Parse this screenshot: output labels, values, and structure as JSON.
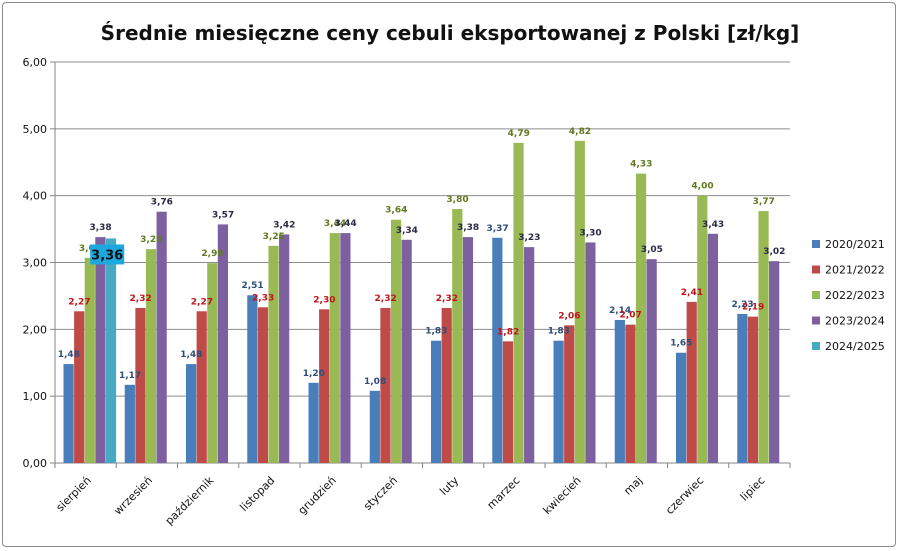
{
  "chart_data": {
    "type": "bar",
    "title": "Średnie miesięczne ceny cebuli eksportowanej z Polski [zł/kg]",
    "xlabel": "",
    "ylabel": "",
    "ylim": [
      0,
      6
    ],
    "yticks": [
      "0,00",
      "1,00",
      "2,00",
      "3,00",
      "4,00",
      "5,00",
      "6,00"
    ],
    "grid": true,
    "legend_position": "right",
    "categories": [
      "sierpień",
      "wrzesień",
      "październik",
      "listopad",
      "grudzień",
      "styczeń",
      "luty",
      "marzec",
      "kwiecień",
      "maj",
      "czerwiec",
      "lipiec"
    ],
    "series": [
      {
        "name": "2020/2021",
        "color": "#4a7ebb",
        "label_color": "#2e4d7a",
        "values": [
          1.48,
          1.17,
          1.48,
          2.51,
          1.2,
          1.08,
          1.83,
          3.37,
          1.83,
          2.14,
          1.65,
          2.23
        ],
        "labels": [
          "1,48",
          "1,17",
          "1,48",
          "2,51",
          "1,20",
          "1,08",
          "1,83",
          "3,37",
          "1,83",
          "2,14",
          "1,65",
          "2,23"
        ]
      },
      {
        "name": "2021/2022",
        "color": "#be4b48",
        "label_color": "#c0141b",
        "values": [
          2.27,
          2.32,
          2.27,
          2.33,
          2.3,
          2.32,
          2.32,
          1.82,
          2.06,
          2.07,
          2.41,
          2.19
        ],
        "labels": [
          "2,27",
          "2,32",
          "2,27",
          "2,33",
          "2,30",
          "2,32",
          "2,32",
          "1,82",
          "2,06",
          "2,07",
          "2,41",
          "2,19"
        ]
      },
      {
        "name": "2022/2023",
        "color": "#98b954",
        "label_color": "#5e7a1e",
        "values": [
          3.07,
          3.2,
          2.99,
          3.25,
          3.44,
          3.64,
          3.8,
          4.79,
          4.82,
          4.33,
          4.0,
          3.77
        ],
        "labels": [
          "3,07",
          "3,20",
          "2,99",
          "3,25",
          "3,44",
          "3,64",
          "3,80",
          "4,79",
          "4,82",
          "4,33",
          "4,00",
          "3,77"
        ]
      },
      {
        "name": "2023/2024",
        "color": "#7d60a0",
        "label_color": "#2a2a44",
        "values": [
          3.38,
          3.76,
          3.57,
          3.42,
          3.44,
          3.34,
          3.38,
          3.23,
          3.3,
          3.05,
          3.43,
          3.02
        ],
        "labels": [
          "3,38",
          "3,76",
          "3,57",
          "3,42",
          "3,44",
          "3,34",
          "3,38",
          "3,23",
          "3,30",
          "3,05",
          "3,43",
          "3,02"
        ]
      },
      {
        "name": "2024/2025",
        "color": "#46aac5",
        "label_color": "#111111",
        "values": [
          3.36,
          null,
          null,
          null,
          null,
          null,
          null,
          null,
          null,
          null,
          null,
          null
        ],
        "labels": [
          "3,36",
          "",
          "",
          "",
          "",
          "",
          "",
          "",
          "",
          "",
          "",
          ""
        ],
        "callout_color": "#1ea8e0"
      }
    ]
  }
}
